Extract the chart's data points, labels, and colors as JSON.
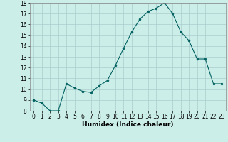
{
  "x": [
    0,
    1,
    2,
    3,
    4,
    5,
    6,
    7,
    8,
    9,
    10,
    11,
    12,
    13,
    14,
    15,
    16,
    17,
    18,
    19,
    20,
    21,
    22,
    23
  ],
  "y": [
    9.0,
    8.7,
    8.0,
    8.0,
    10.5,
    10.1,
    9.8,
    9.7,
    10.3,
    10.8,
    12.2,
    13.8,
    15.3,
    16.5,
    17.2,
    17.5,
    18.0,
    17.0,
    15.3,
    14.5,
    12.8,
    12.8,
    10.5,
    10.5
  ],
  "xlabel": "Humidex (Indice chaleur)",
  "ylim": [
    8,
    18
  ],
  "xlim_min": -0.5,
  "xlim_max": 23.5,
  "line_color": "#006060",
  "marker_color": "#006060",
  "bg_color": "#cceee8",
  "grid_color": "#aacccc",
  "yticks": [
    8,
    9,
    10,
    11,
    12,
    13,
    14,
    15,
    16,
    17,
    18
  ],
  "xticks": [
    0,
    1,
    2,
    3,
    4,
    5,
    6,
    7,
    8,
    9,
    10,
    11,
    12,
    13,
    14,
    15,
    16,
    17,
    18,
    19,
    20,
    21,
    22,
    23
  ],
  "tick_fontsize": 5.5,
  "xlabel_fontsize": 6.5
}
